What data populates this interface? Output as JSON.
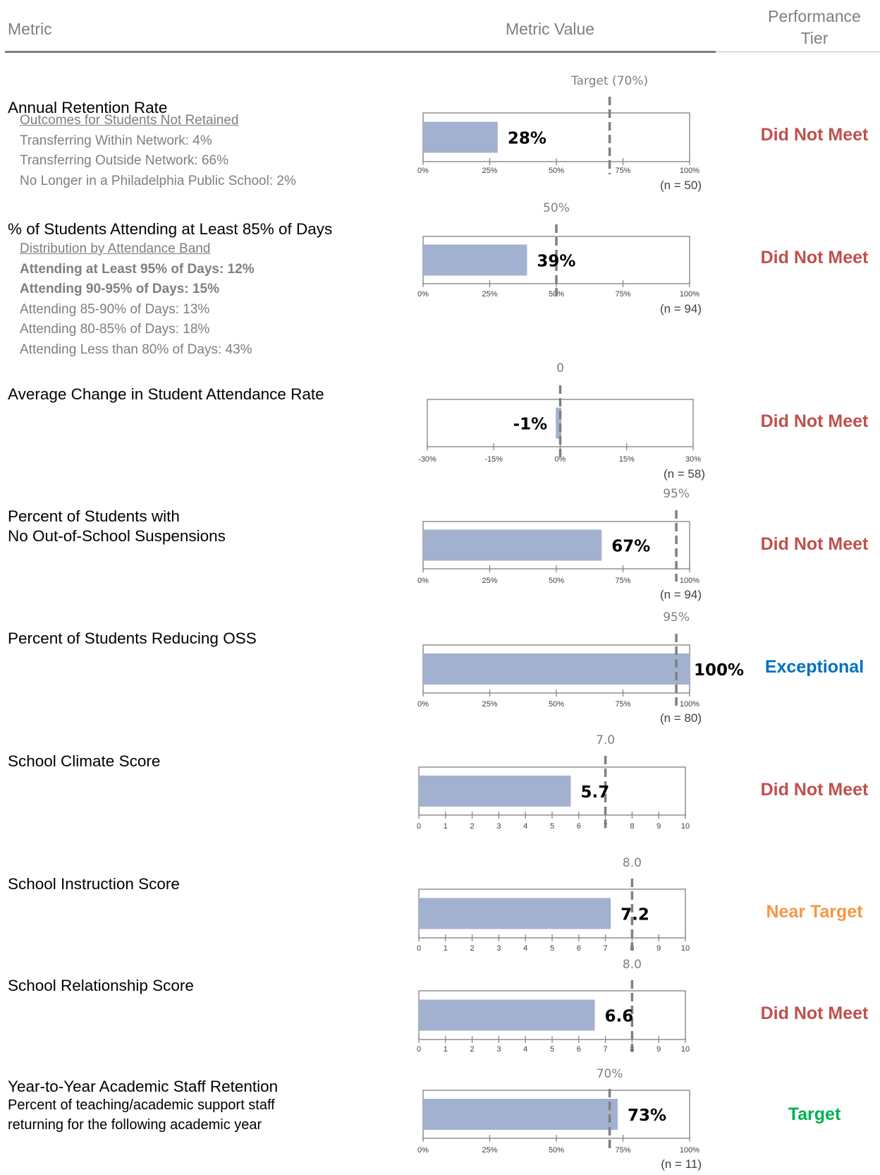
{
  "header": {
    "metric": "Metric",
    "metric_value": "Metric Value",
    "tier_line1": "Performance",
    "tier_line2": "Tier"
  },
  "colors": {
    "bar": "#a3b1d0",
    "did_not_meet": "#c0504d",
    "exceptional": "#0070c0",
    "near_target": "#f79646",
    "target": "#00b050",
    "axis": "#7f7f7f",
    "target_line": "#7f7f7f"
  },
  "metrics": [
    {
      "title": [
        "Annual Retention Rate"
      ],
      "sub": [
        {
          "text": "Outcomes for Students Not Retained",
          "style": "u"
        },
        {
          "text": "Transferring Within Network:  4%",
          "style": ""
        },
        {
          "text": "Transferring Outside Network:  66%",
          "style": ""
        },
        {
          "text": "No Longer in a Philadelphia Public School:  2%",
          "style": ""
        }
      ],
      "desc": [],
      "tier": "Did Not Meet",
      "tier_color": "did_not_meet"
    },
    {
      "title": [
        "% of Students Attending at Least 85% of Days"
      ],
      "sub": [
        {
          "text": "Distribution by Attendance Band",
          "style": "u"
        },
        {
          "text": "Attending at Least 95% of Days:  12%",
          "style": "b"
        },
        {
          "text": "Attending 90-95% of Days:  15%",
          "style": "b"
        },
        {
          "text": "Attending 85-90% of Days:  13%",
          "style": ""
        },
        {
          "text": "Attending 80-85% of Days:  18%",
          "style": ""
        },
        {
          "text": "Attending Less than 80% of Days:  43%",
          "style": ""
        }
      ],
      "desc": [],
      "tier": "Did Not Meet",
      "tier_color": "did_not_meet"
    },
    {
      "title": [
        "Average Change in Student Attendance Rate"
      ],
      "sub": [],
      "desc": [],
      "tier": "Did Not Meet",
      "tier_color": "did_not_meet"
    },
    {
      "title": [
        "Percent of Students with",
        "No Out-of-School Suspensions"
      ],
      "sub": [],
      "desc": [],
      "tier": "Did Not Meet",
      "tier_color": "did_not_meet"
    },
    {
      "title": [
        "Percent of Students Reducing OSS"
      ],
      "sub": [],
      "desc": [],
      "tier": "Exceptional",
      "tier_color": "exceptional"
    },
    {
      "title": [
        "School Climate Score"
      ],
      "sub": [],
      "desc": [],
      "tier": "Did Not Meet",
      "tier_color": "did_not_meet"
    },
    {
      "title": [
        "School Instruction Score"
      ],
      "sub": [],
      "desc": [],
      "tier": "Near Target",
      "tier_color": "near_target"
    },
    {
      "title": [
        "School Relationship Score"
      ],
      "sub": [],
      "desc": [],
      "tier": "Did Not Meet",
      "tier_color": "did_not_meet"
    },
    {
      "title": [
        "Year-to-Year Academic Staff Retention"
      ],
      "sub": [],
      "desc": [
        "Percent of teaching/academic support staff",
        "returning for the following academic year"
      ],
      "tier": "Target",
      "tier_color": "target"
    }
  ],
  "chart_data": [
    {
      "type": "bar",
      "metric": "Annual Retention Rate",
      "value": 28,
      "value_label": "28%",
      "xlim": [
        0,
        100
      ],
      "ticks": [
        0,
        25,
        50,
        75,
        100
      ],
      "tick_labels": [
        "0%",
        "25%",
        "50%",
        "75%",
        "100%"
      ],
      "target": 70,
      "target_label": "Target (70%)",
      "n_label": "(n = 50)"
    },
    {
      "type": "bar",
      "metric": "% of Students Attending at Least 85% of Days",
      "value": 39,
      "value_label": "39%",
      "xlim": [
        0,
        100
      ],
      "ticks": [
        0,
        25,
        50,
        75,
        100
      ],
      "tick_labels": [
        "0%",
        "25%",
        "50%",
        "75%",
        "100%"
      ],
      "target": 50,
      "target_label": "50%",
      "n_label": "(n = 94)"
    },
    {
      "type": "bar",
      "metric": "Average Change in Student Attendance Rate",
      "value": -1,
      "value_label": "-1%",
      "xlim": [
        -30,
        30
      ],
      "ticks": [
        -30,
        -15,
        0,
        15,
        30
      ],
      "tick_labels": [
        "-30%",
        "-15%",
        "0%",
        "15%",
        "30%"
      ],
      "target": 0,
      "target_label": "0",
      "n_label": "(n = 58)"
    },
    {
      "type": "bar",
      "metric": "Percent of Students with No Out-of-School Suspensions",
      "value": 67,
      "value_label": "67%",
      "xlim": [
        0,
        100
      ],
      "ticks": [
        0,
        25,
        50,
        75,
        100
      ],
      "tick_labels": [
        "0%",
        "25%",
        "50%",
        "75%",
        "100%"
      ],
      "target": 95,
      "target_label": "95%",
      "n_label": "(n = 94)"
    },
    {
      "type": "bar",
      "metric": "Percent of Students Reducing OSS",
      "value": 100,
      "value_label": "100%",
      "xlim": [
        0,
        100
      ],
      "ticks": [
        0,
        25,
        50,
        75,
        100
      ],
      "tick_labels": [
        "0%",
        "25%",
        "50%",
        "75%",
        "100%"
      ],
      "target": 95,
      "target_label": "95%",
      "n_label": "(n = 80)"
    },
    {
      "type": "bar",
      "metric": "School Climate Score",
      "value": 5.7,
      "value_label": "5.7",
      "xlim": [
        0,
        10
      ],
      "ticks": [
        0,
        1,
        2,
        3,
        4,
        5,
        6,
        7,
        8,
        9,
        10
      ],
      "tick_labels": [
        "0",
        "1",
        "2",
        "3",
        "4",
        "5",
        "6",
        "7",
        "8",
        "9",
        "10"
      ],
      "target": 7.0,
      "target_label": "7.0",
      "n_label": ""
    },
    {
      "type": "bar",
      "metric": "School Instruction Score",
      "value": 7.2,
      "value_label": "7.2",
      "xlim": [
        0,
        10
      ],
      "ticks": [
        0,
        1,
        2,
        3,
        4,
        5,
        6,
        7,
        8,
        9,
        10
      ],
      "tick_labels": [
        "0",
        "1",
        "2",
        "3",
        "4",
        "5",
        "6",
        "7",
        "8",
        "9",
        "10"
      ],
      "target": 8.0,
      "target_label": "8.0",
      "n_label": ""
    },
    {
      "type": "bar",
      "metric": "School Relationship Score",
      "value": 6.6,
      "value_label": "6.6",
      "xlim": [
        0,
        10
      ],
      "ticks": [
        0,
        1,
        2,
        3,
        4,
        5,
        6,
        7,
        8,
        9,
        10
      ],
      "tick_labels": [
        "0",
        "1",
        "2",
        "3",
        "4",
        "5",
        "6",
        "7",
        "8",
        "9",
        "10"
      ],
      "target": 8.0,
      "target_label": "8.0",
      "n_label": ""
    },
    {
      "type": "bar",
      "metric": "Year-to-Year Academic Staff Retention",
      "value": 73,
      "value_label": "73%",
      "xlim": [
        0,
        100
      ],
      "ticks": [
        0,
        25,
        50,
        75,
        100
      ],
      "tick_labels": [
        "0%",
        "25%",
        "50%",
        "75%",
        "100%"
      ],
      "target": 70,
      "target_label": "70%",
      "n_label": "(n = 11)"
    }
  ]
}
